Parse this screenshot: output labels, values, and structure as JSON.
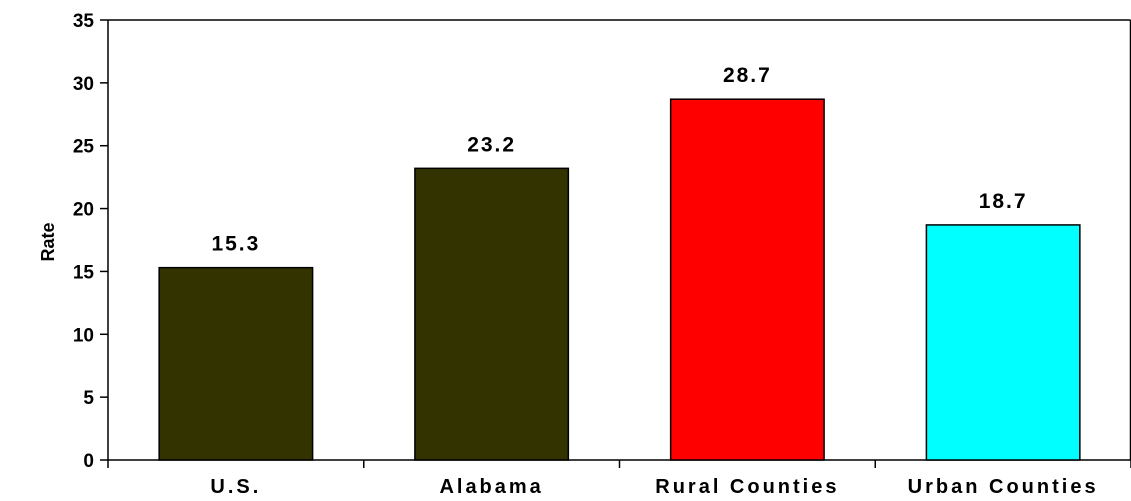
{
  "chart_data": {
    "type": "bar",
    "title": "",
    "xlabel": "",
    "ylabel": "Rate",
    "ylim": [
      0,
      35
    ],
    "yticks": [
      0,
      5,
      10,
      15,
      20,
      25,
      30,
      35
    ],
    "grid": false,
    "legend": "none",
    "categories": [
      "U.S.",
      "Alabama",
      "Rural Counties",
      "Urban Counties"
    ],
    "values": [
      15.3,
      23.2,
      28.7,
      18.7
    ],
    "data_labels": [
      "15.3",
      "23.2",
      "28.7",
      "18.7"
    ],
    "bar_colors": [
      "#333300",
      "#333300",
      "#ff0000",
      "#00ffff"
    ]
  }
}
